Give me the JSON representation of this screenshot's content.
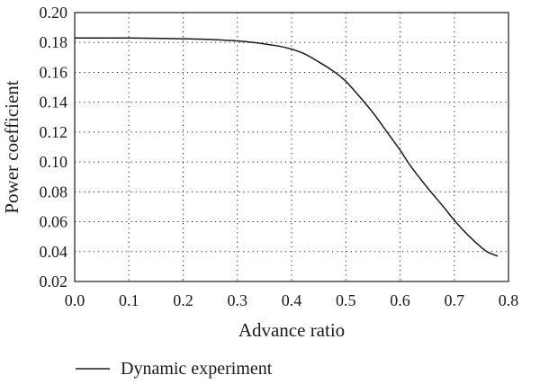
{
  "chart_data": {
    "type": "line",
    "title": "",
    "xlabel": "Advance ratio",
    "ylabel": "Power coefficient",
    "xlim": [
      0.0,
      0.8
    ],
    "ylim": [
      0.02,
      0.2
    ],
    "x_ticks": [
      "0.0",
      "0.1",
      "0.2",
      "0.3",
      "0.4",
      "0.5",
      "0.6",
      "0.7",
      "0.8"
    ],
    "y_ticks": [
      "0.02",
      "0.04",
      "0.06",
      "0.08",
      "0.10",
      "0.12",
      "0.14",
      "0.16",
      "0.18",
      "0.20"
    ],
    "grid": true,
    "grid_style": "dotted",
    "legend_position": "below",
    "series": [
      {
        "name": "Dynamic experiment",
        "color": "#1a1a1a",
        "x": [
          0.0,
          0.05,
          0.1,
          0.15,
          0.2,
          0.25,
          0.3,
          0.33,
          0.36,
          0.39,
          0.42,
          0.45,
          0.48,
          0.5,
          0.52,
          0.55,
          0.58,
          0.6,
          0.62,
          0.65,
          0.68,
          0.7,
          0.72,
          0.74,
          0.76,
          0.78
        ],
        "y": [
          0.183,
          0.183,
          0.183,
          0.1828,
          0.1825,
          0.182,
          0.181,
          0.18,
          0.1785,
          0.1765,
          0.173,
          0.167,
          0.16,
          0.154,
          0.146,
          0.133,
          0.118,
          0.108,
          0.097,
          0.083,
          0.07,
          0.061,
          0.053,
          0.046,
          0.04,
          0.037
        ]
      }
    ]
  }
}
